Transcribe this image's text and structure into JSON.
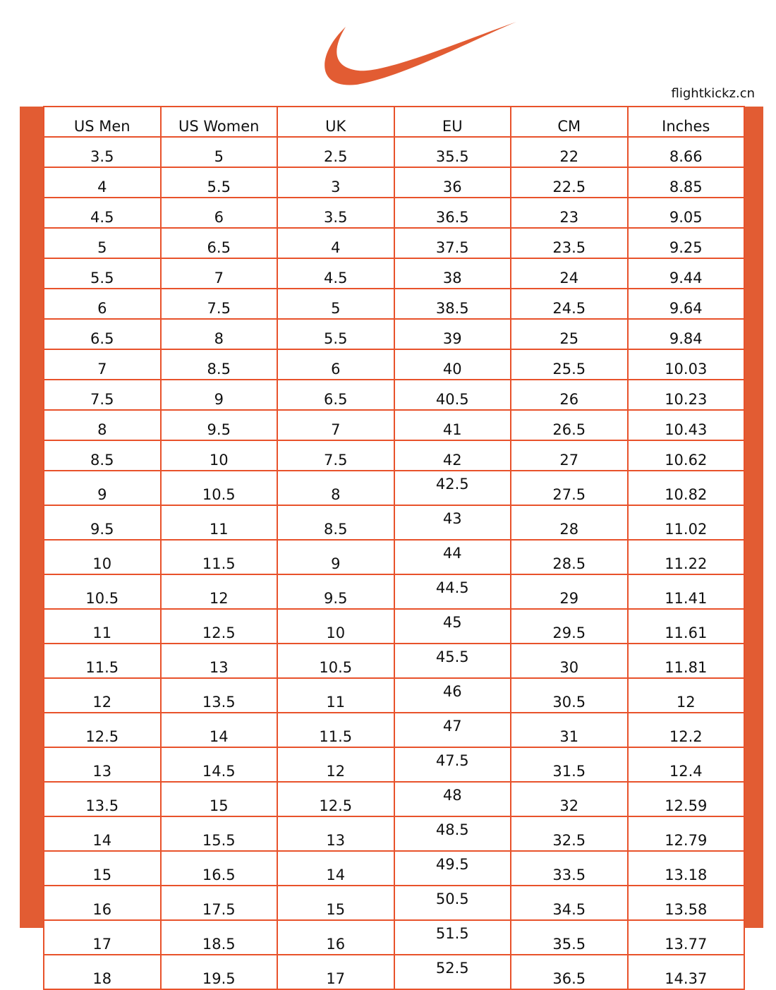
{
  "brand_color": "#E25C33",
  "logo": {
    "name": "nike-swoosh-logo"
  },
  "site": "flightkickz.cn",
  "table": {
    "headers": [
      "US Men",
      "US Women",
      "UK",
      "EU",
      "CM",
      "Inches"
    ],
    "rows": [
      [
        "3.5",
        "5",
        "2.5",
        "35.5",
        "22",
        "8.66"
      ],
      [
        "4",
        "5.5",
        "3",
        "36",
        "22.5",
        "8.85"
      ],
      [
        "4.5",
        "6",
        "3.5",
        "36.5",
        "23",
        "9.05"
      ],
      [
        "5",
        "6.5",
        "4",
        "37.5",
        "23.5",
        "9.25"
      ],
      [
        "5.5",
        "7",
        "4.5",
        "38",
        "24",
        "9.44"
      ],
      [
        "6",
        "7.5",
        "5",
        "38.5",
        "24.5",
        "9.64"
      ],
      [
        "6.5",
        "8",
        "5.5",
        "39",
        "25",
        "9.84"
      ],
      [
        "7",
        "8.5",
        "6",
        "40",
        "25.5",
        "10.03"
      ],
      [
        "7.5",
        "9",
        "6.5",
        "40.5",
        "26",
        "10.23"
      ],
      [
        "8",
        "9.5",
        "7",
        "41",
        "26.5",
        "10.43"
      ],
      [
        "8.5",
        "10",
        "7.5",
        "42",
        "27",
        "10.62"
      ],
      [
        "9",
        "10.5",
        "8",
        "42.5",
        "27.5",
        "10.82"
      ],
      [
        "9.5",
        "11",
        "8.5",
        "43",
        "28",
        "11.02"
      ],
      [
        "10",
        "11.5",
        "9",
        "44",
        "28.5",
        "11.22"
      ],
      [
        "10.5",
        "12",
        "9.5",
        "44.5",
        "29",
        "11.41"
      ],
      [
        "11",
        "12.5",
        "10",
        "45",
        "29.5",
        "11.61"
      ],
      [
        "11.5",
        "13",
        "10.5",
        "45.5",
        "30",
        "11.81"
      ],
      [
        "12",
        "13.5",
        "11",
        "46",
        "30.5",
        "12"
      ],
      [
        "12.5",
        "14",
        "11.5",
        "47",
        "31",
        "12.2"
      ],
      [
        "13",
        "14.5",
        "12",
        "47.5",
        "31.5",
        "12.4"
      ],
      [
        "13.5",
        "15",
        "12.5",
        "48",
        "32",
        "12.59"
      ],
      [
        "14",
        "15.5",
        "13",
        "48.5",
        "32.5",
        "12.79"
      ],
      [
        "15",
        "16.5",
        "14",
        "49.5",
        "33.5",
        "13.18"
      ],
      [
        "16",
        "17.5",
        "15",
        "50.5",
        "34.5",
        "13.58"
      ],
      [
        "17",
        "18.5",
        "16",
        "51.5",
        "35.5",
        "13.77"
      ],
      [
        "18",
        "19.5",
        "17",
        "52.5",
        "36.5",
        "14.37"
      ]
    ]
  }
}
